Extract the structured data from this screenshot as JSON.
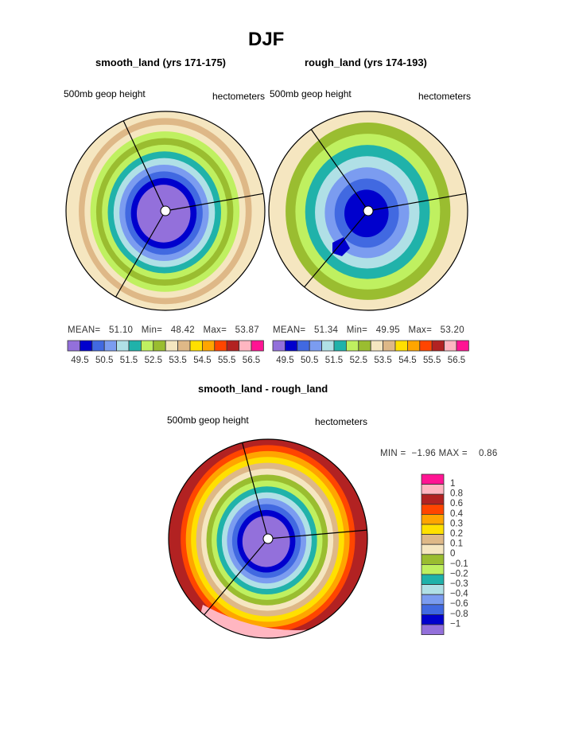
{
  "title": "DJF",
  "colors": [
    "#9370DB",
    "#0000CD",
    "#4169E1",
    "#7B9CF0",
    "#B0E0E6",
    "#20B2AA",
    "#BFF060",
    "#9ABD30",
    "#F5E6C0",
    "#DEB887",
    "#FFE000",
    "#FFA500",
    "#FF4500",
    "#B22222",
    "#FFB6C1",
    "#FF1493"
  ],
  "chart_data": [
    {
      "type": "heatmap",
      "title": "smooth_land (yrs 171-175)",
      "left_label": "500mb geop height",
      "right_label": "hectometers",
      "stats": {
        "mean_label": "MEAN=",
        "mean": "51.10",
        "min_label": "Min=",
        "min": "48.42",
        "max_label": "Max=",
        "max": "53.87"
      },
      "levels": [
        "49.5",
        "50.5",
        "51.5",
        "52.5",
        "53.5",
        "54.5",
        "55.5",
        "56.5"
      ],
      "rings_outer_to_inner": [
        8,
        9,
        8,
        6,
        7,
        6,
        5,
        4,
        3,
        2,
        1,
        0
      ]
    },
    {
      "type": "heatmap",
      "title": "rough_land (yrs 174-193)",
      "left_label": "500mb geop height",
      "right_label": "hectometers",
      "stats": {
        "mean_label": "MEAN=",
        "mean": "51.34",
        "min_label": "Min=",
        "min": "49.95",
        "max_label": "Max=",
        "max": "53.20"
      },
      "levels": [
        "49.5",
        "50.5",
        "51.5",
        "52.5",
        "53.5",
        "54.5",
        "55.5",
        "56.5"
      ],
      "rings_outer_to_inner": [
        8,
        7,
        6,
        5,
        4,
        3,
        2,
        1
      ]
    },
    {
      "type": "heatmap",
      "title": "smooth_land - rough_land",
      "left_label": "500mb geop height",
      "right_label": "hectometers",
      "stats": {
        "min_label": "MIN =",
        "min": "−1.96",
        "max_label": "MAX =",
        "max": "0.86"
      },
      "levels": [
        "1",
        "0.8",
        "0.6",
        "0.4",
        "0.3",
        "0.2",
        "0.1",
        "0",
        "−0.1",
        "−0.2",
        "−0.3",
        "−0.4",
        "−0.6",
        "−0.8",
        "−1"
      ],
      "rings_outer_to_inner": [
        13,
        12,
        11,
        10,
        9,
        8,
        7,
        6,
        5,
        4,
        3,
        2,
        1,
        0
      ]
    }
  ]
}
